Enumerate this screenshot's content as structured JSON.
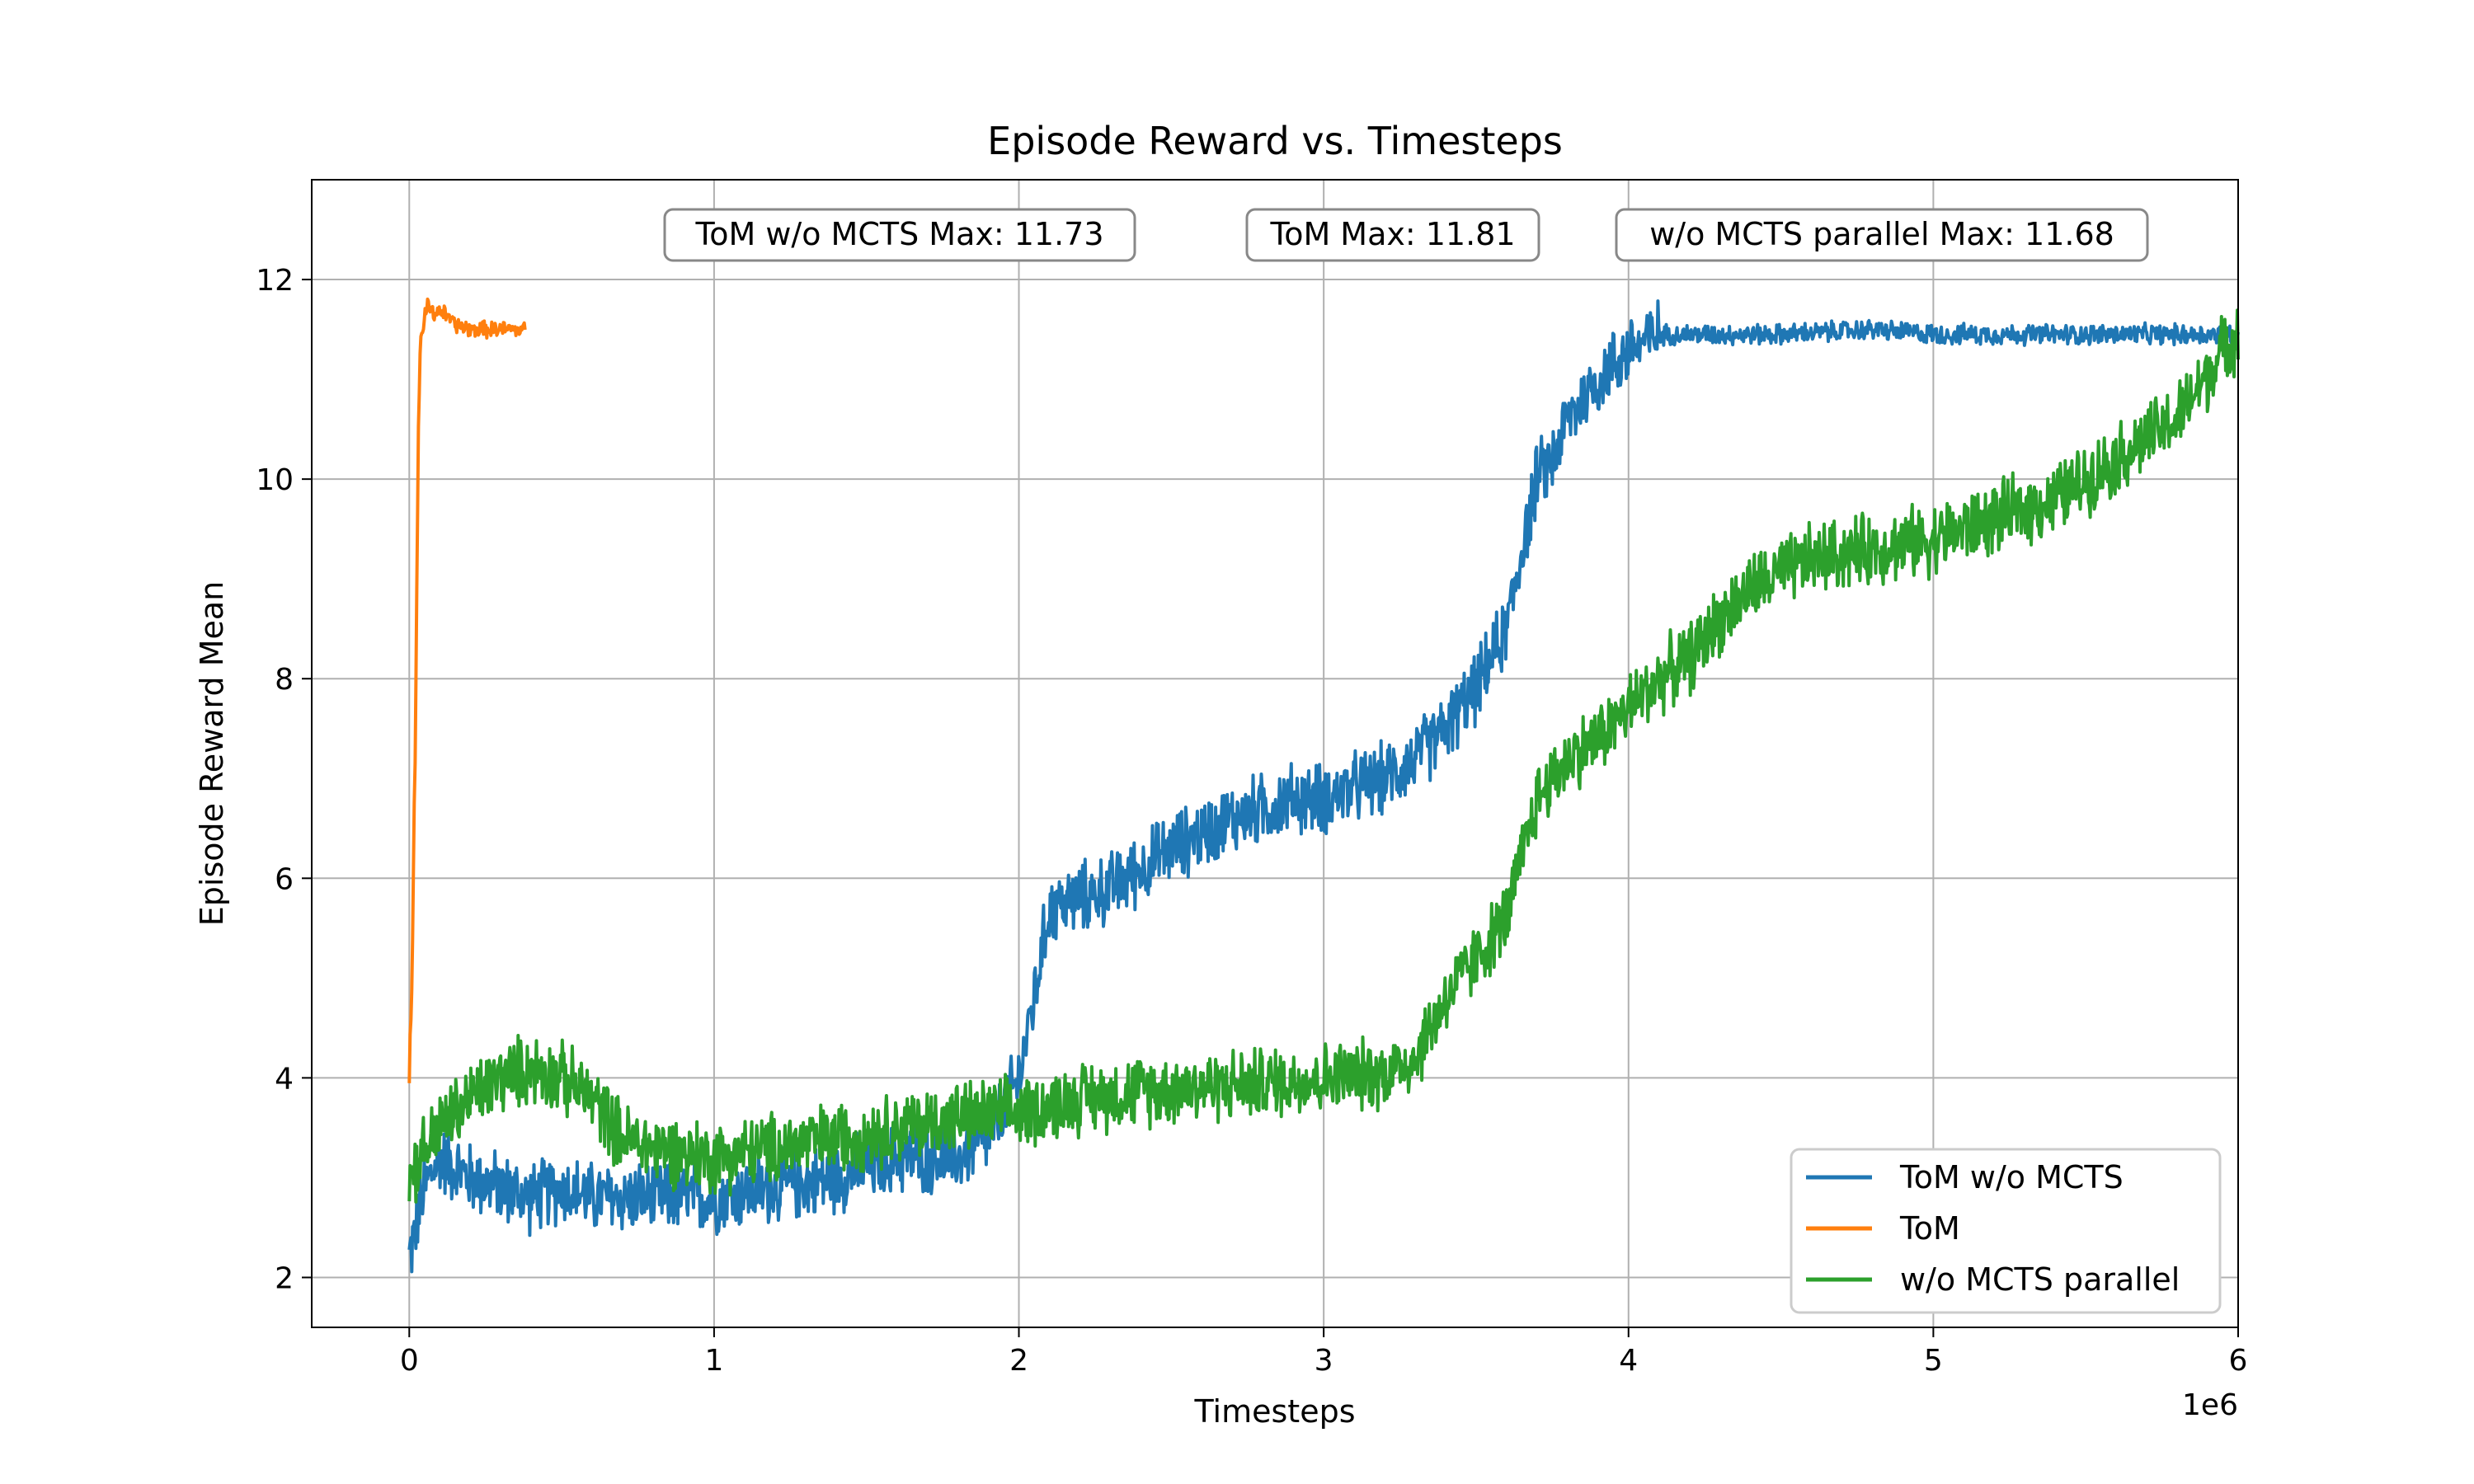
{
  "chart_data": {
    "type": "line",
    "title": "Episode Reward vs. Timesteps",
    "xlabel": "Timesteps",
    "ylabel": "Episode Reward Mean",
    "x_offset_label": "1e6",
    "xlim": [
      -0.32,
      6.0
    ],
    "ylim": [
      1.5,
      13.0
    ],
    "xticks": [
      0,
      1,
      2,
      3,
      4,
      5,
      6
    ],
    "xtick_labels": [
      "0",
      "1",
      "2",
      "3",
      "4",
      "5",
      "6"
    ],
    "yticks": [
      2,
      4,
      6,
      8,
      10,
      12
    ],
    "ytick_labels": [
      "2",
      "4",
      "6",
      "8",
      "10",
      "12"
    ],
    "grid": true,
    "legend_position": "lower-right",
    "annotations": [
      {
        "text": "ToM w/o MCTS Max: 11.73"
      },
      {
        "text": "ToM Max: 11.81"
      },
      {
        "text": "w/o MCTS parallel Max: 11.68"
      }
    ],
    "series": [
      {
        "name": "ToM w/o MCTS",
        "color": "#1f77b4",
        "x": [
          0.0,
          0.05,
          0.1,
          0.2,
          0.3,
          0.4,
          0.5,
          0.6,
          0.8,
          1.0,
          1.2,
          1.4,
          1.6,
          1.8,
          1.9,
          2.0,
          2.05,
          2.1,
          2.2,
          2.3,
          2.5,
          2.7,
          2.9,
          3.0,
          3.1,
          3.2,
          3.3,
          3.4,
          3.5,
          3.6,
          3.65,
          3.7,
          3.75,
          3.8,
          3.9,
          4.0,
          4.1,
          4.2,
          4.5,
          4.8,
          5.0,
          5.3,
          5.6,
          6.0
        ],
        "y": [
          2.2,
          2.9,
          3.2,
          3.0,
          2.9,
          2.8,
          2.9,
          2.8,
          2.8,
          2.8,
          2.9,
          3.0,
          3.2,
          3.2,
          3.4,
          4.0,
          4.8,
          5.7,
          5.8,
          5.9,
          6.3,
          6.6,
          6.8,
          6.8,
          6.9,
          7.0,
          7.2,
          7.5,
          7.9,
          8.5,
          9.3,
          10.0,
          10.2,
          10.6,
          11.0,
          11.3,
          11.45,
          11.45,
          11.45,
          11.5,
          11.45,
          11.45,
          11.45,
          11.45
        ]
      },
      {
        "name": "ToM",
        "color": "#ff7f0e",
        "x": [
          0.0,
          0.01,
          0.015,
          0.02,
          0.025,
          0.03,
          0.035,
          0.04,
          0.05,
          0.06,
          0.08,
          0.1,
          0.15,
          0.2,
          0.25,
          0.3,
          0.35,
          0.38
        ],
        "y": [
          4.0,
          5.2,
          6.2,
          7.5,
          9.0,
          10.5,
          11.2,
          11.45,
          11.6,
          11.75,
          11.65,
          11.7,
          11.55,
          11.5,
          11.5,
          11.5,
          11.5,
          11.5
        ]
      },
      {
        "name": "w/o MCTS parallel",
        "color": "#2ca02c",
        "x": [
          0.0,
          0.05,
          0.1,
          0.2,
          0.3,
          0.4,
          0.5,
          0.6,
          0.7,
          0.8,
          1.0,
          1.2,
          1.4,
          1.6,
          1.8,
          2.0,
          2.2,
          2.5,
          2.8,
          3.0,
          3.2,
          3.3,
          3.4,
          3.5,
          3.6,
          3.7,
          3.8,
          3.9,
          4.0,
          4.1,
          4.2,
          4.3,
          4.4,
          4.6,
          4.8,
          5.0,
          5.2,
          5.4,
          5.6,
          5.8,
          6.0
        ],
        "y": [
          3.0,
          3.3,
          3.5,
          3.8,
          4.0,
          4.1,
          4.0,
          3.8,
          3.4,
          3.3,
          3.2,
          3.3,
          3.4,
          3.5,
          3.6,
          3.65,
          3.8,
          3.9,
          3.95,
          4.0,
          4.05,
          4.2,
          4.8,
          5.2,
          5.6,
          6.8,
          7.2,
          7.4,
          7.7,
          8.0,
          8.2,
          8.6,
          8.9,
          9.2,
          9.3,
          9.4,
          9.6,
          9.8,
          10.2,
          10.6,
          11.5
        ]
      }
    ]
  }
}
